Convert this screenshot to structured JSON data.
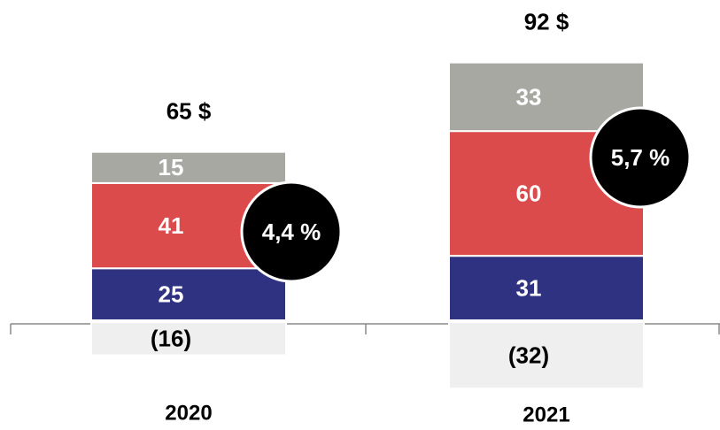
{
  "chart_data": {
    "type": "stacked_bar",
    "categories": [
      "2020",
      "2021"
    ],
    "series": [
      {
        "color": "#2e3280",
        "values": [
          25,
          31
        ]
      },
      {
        "color": "#dc4b4b",
        "values": [
          41,
          60
        ]
      },
      {
        "color": "#a8a8a2",
        "values": [
          15,
          33
        ]
      },
      {
        "color": "#efefef",
        "values": [
          -16,
          -32
        ],
        "value_labels": [
          "(16)",
          "(32)"
        ]
      }
    ],
    "total_labels": [
      "65 $",
      "92 $"
    ],
    "circle_labels": [
      "4,4 %",
      "5,7 %"
    ]
  }
}
